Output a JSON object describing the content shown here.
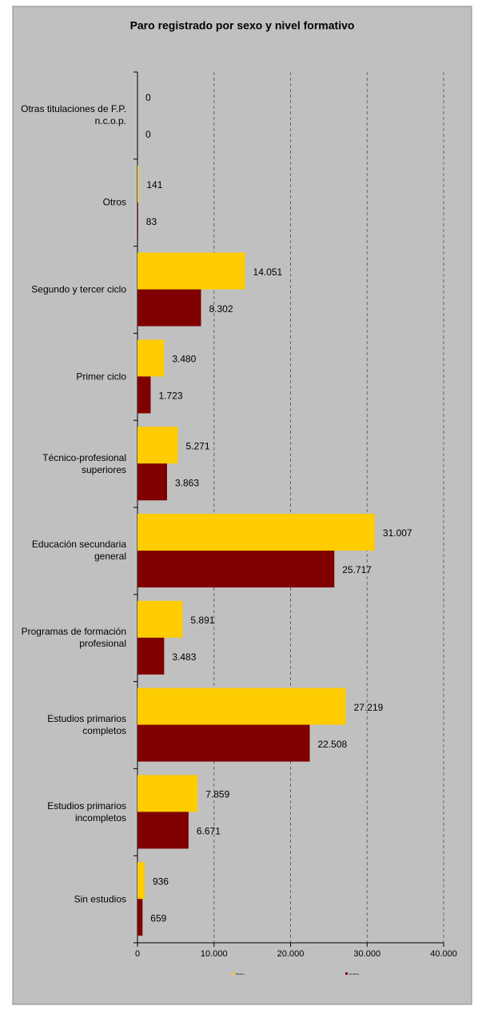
{
  "chart_data": {
    "type": "bar",
    "orientation": "horizontal",
    "title": "Paro registrado por sexo y nivel formativo",
    "categories": [
      "Otras titulaciones de F.P. n.c.o.p.",
      "Otros",
      "Segundo y tercer ciclo",
      "Primer ciclo",
      "Técnico-profesional superiores",
      "Educación secundaria general",
      "Programas de formación profesional",
      "Estudios primarios completos",
      "Estudios primarios incompletos",
      "Sin estudios"
    ],
    "series": [
      {
        "name": "Mujeres",
        "color": "#ffcc00",
        "values": [
          0,
          141,
          14051,
          3480,
          5271,
          31007,
          5891,
          27219,
          7859,
          936
        ],
        "value_labels": [
          "0",
          "141",
          "14.051",
          "3.480",
          "5.271",
          "31.007",
          "5.891",
          "27.219",
          "7.859",
          "936"
        ]
      },
      {
        "name": "Hombres",
        "color": "#800000",
        "values": [
          0,
          83,
          8302,
          1723,
          3863,
          25717,
          3483,
          22508,
          6671,
          659
        ],
        "value_labels": [
          "0",
          "83",
          "8.302",
          "1.723",
          "3.863",
          "25.717",
          "3.483",
          "22.508",
          "6.671",
          "659"
        ]
      }
    ],
    "xlim": [
      0,
      40000
    ],
    "xticks": [
      0,
      {
        "value": 10000,
        "label": "10.000"
      },
      {
        "value": 20000,
        "label": "20.000"
      },
      {
        "value": 30000,
        "label": "30.000"
      },
      {
        "value": 40000,
        "label": "40.000"
      }
    ],
    "grid": true,
    "legend": "bottom"
  }
}
